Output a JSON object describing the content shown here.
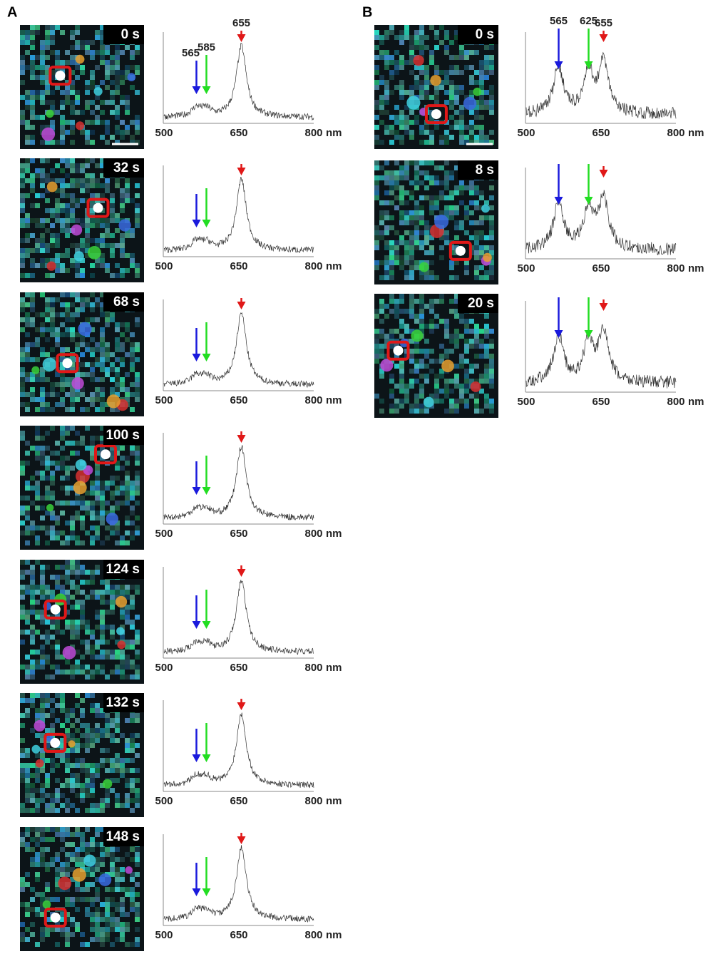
{
  "panels": [
    {
      "label": "A",
      "ticks": [
        500,
        650,
        800
      ],
      "unit": "nm",
      "peaks": [
        {
          "label": 565,
          "color": "#1a1adc"
        },
        {
          "label": 585,
          "color": "#22dd22"
        },
        {
          "label": 655,
          "color": "#e01818"
        }
      ],
      "rows": [
        {
          "time": "0 s"
        },
        {
          "time": "32 s"
        },
        {
          "time": "68 s"
        },
        {
          "time": "100 s"
        },
        {
          "time": "124 s"
        },
        {
          "time": "132 s"
        },
        {
          "time": "148 s"
        }
      ]
    },
    {
      "label": "B",
      "ticks": [
        500,
        650,
        800
      ],
      "unit": "nm",
      "peaks": [
        {
          "label": 565,
          "color": "#1a1adc"
        },
        {
          "label": 625,
          "color": "#22dd22"
        },
        {
          "label": 655,
          "color": "#e01818"
        }
      ],
      "rows": [
        {
          "time": "0 s"
        },
        {
          "time": "8 s"
        },
        {
          "time": "20 s"
        }
      ]
    }
  ]
}
